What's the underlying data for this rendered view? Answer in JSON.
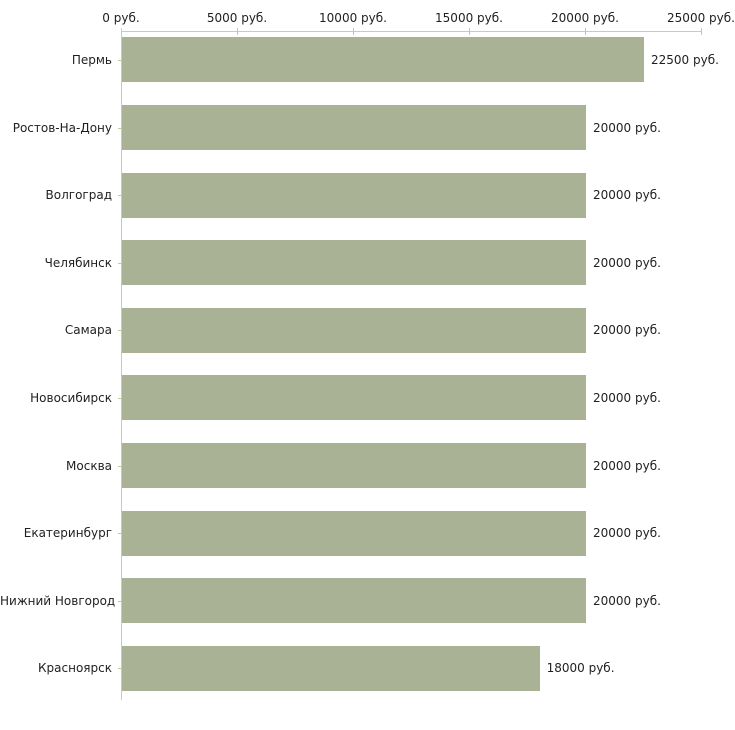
{
  "chart_data": {
    "type": "bar",
    "orientation": "horizontal",
    "title": "",
    "xlabel": "",
    "ylabel": "",
    "unit": "руб.",
    "categories": [
      "Пермь",
      "Ростов-На-Дону",
      "Волгоград",
      "Челябинск",
      "Самара",
      "Новосибирск",
      "Москва",
      "Екатеринбург",
      "Нижний Новгород",
      "Красноярск"
    ],
    "values": [
      22500,
      20000,
      20000,
      20000,
      20000,
      20000,
      20000,
      20000,
      20000,
      18000
    ],
    "value_labels": [
      "22500 руб.",
      "20000 руб.",
      "20000 руб.",
      "20000 руб.",
      "20000 руб.",
      "20000 руб.",
      "20000 руб.",
      "20000 руб.",
      "20000 руб.",
      "18000 руб."
    ],
    "xlim": [
      0,
      25000
    ],
    "x_ticks": [
      0,
      5000,
      10000,
      15000,
      20000,
      25000
    ],
    "x_tick_labels": [
      "0 руб.",
      "5000 руб.",
      "10000 руб.",
      "15000 руб.",
      "20000 руб.",
      "25000 руб."
    ],
    "grid": false,
    "legend": "none",
    "colors": {
      "bar": "#a9b295",
      "axis": "#c8c8c8",
      "tick": "#c6c69a",
      "text": "#1f1f1f",
      "background": "#ffffff"
    }
  }
}
